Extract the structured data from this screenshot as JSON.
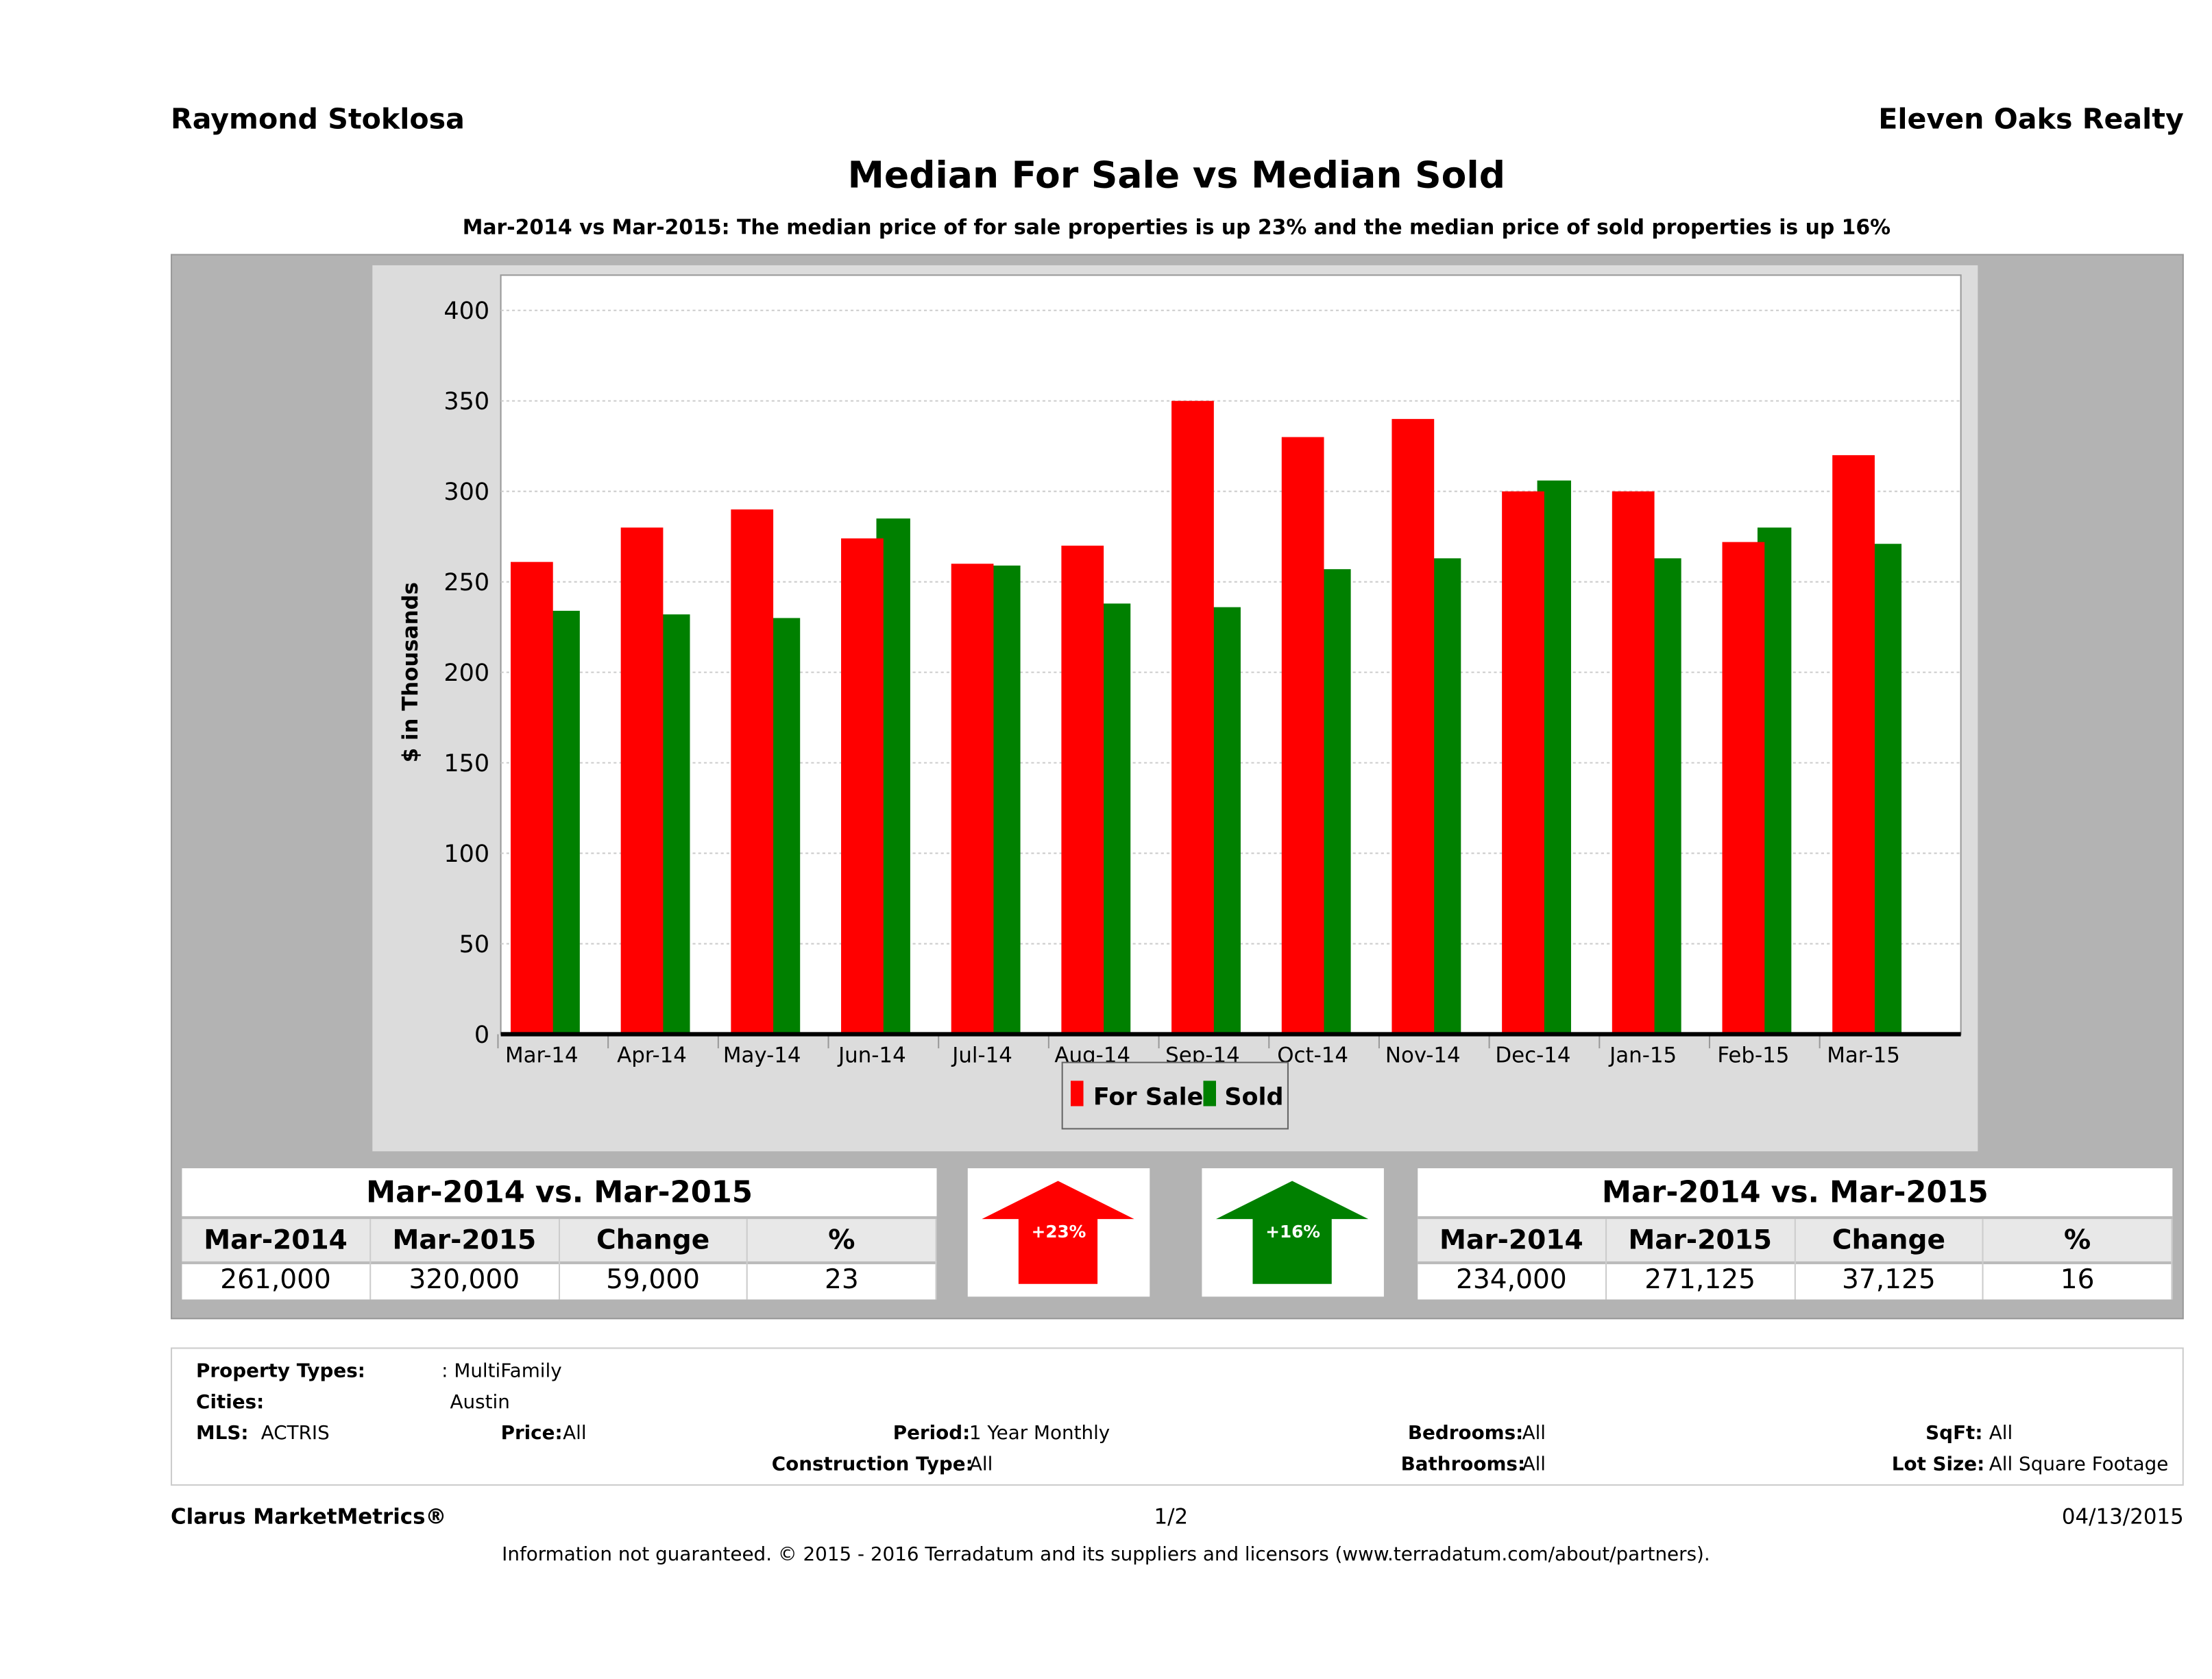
{
  "header": {
    "agent": "Raymond Stoklosa",
    "brokerage": "Eleven Oaks Realty"
  },
  "title": "Median For Sale vs Median Sold",
  "subtitle": "Mar-2014 vs Mar-2015: The median price of for sale properties is up 23% and the median price of sold properties is up 16%",
  "chart_data": {
    "type": "bar",
    "categories": [
      "Mar-14",
      "Apr-14",
      "May-14",
      "Jun-14",
      "Jul-14",
      "Aug-14",
      "Sep-14",
      "Oct-14",
      "Nov-14",
      "Dec-14",
      "Jan-15",
      "Feb-15",
      "Mar-15"
    ],
    "series": [
      {
        "name": "For Sale",
        "color": "#ff0000",
        "values": [
          261,
          280,
          290,
          274,
          260,
          270,
          350,
          330,
          340,
          300,
          300,
          272,
          320
        ]
      },
      {
        "name": "Sold",
        "color": "#008000",
        "values": [
          234,
          232,
          230,
          285,
          259,
          238,
          236,
          257,
          263,
          306,
          263,
          280,
          271
        ]
      }
    ],
    "ylabel": "$ in Thousands",
    "xlabel": "",
    "ylim": [
      0,
      400
    ],
    "yticks": [
      0,
      50,
      100,
      150,
      200,
      250,
      300,
      350,
      400
    ],
    "grid": true,
    "legend": "bottom"
  },
  "for_sale_table": {
    "title": "Mar-2014 vs. Mar-2015",
    "headers": [
      "Mar-2014",
      "Mar-2015",
      "Change",
      "%"
    ],
    "values": [
      "261,000",
      "320,000",
      "59,000",
      "23"
    ]
  },
  "sold_table": {
    "title": "Mar-2014 vs. Mar-2015",
    "headers": [
      "Mar-2014",
      "Mar-2015",
      "Change",
      "%"
    ],
    "values": [
      "234,000",
      "271,125",
      "37,125",
      "16"
    ]
  },
  "arrows": {
    "for_sale": {
      "label": "+23%",
      "color": "#ff0000",
      "direction": "up"
    },
    "sold": {
      "label": "+16%",
      "color": "#008000",
      "direction": "up"
    }
  },
  "info": {
    "property_types_label": "Property Types:",
    "property_types": ": MultiFamily",
    "cities_label": "Cities:",
    "cities": "Austin",
    "mls_label": "MLS:",
    "mls": "ACTRIS",
    "price_label": "Price:",
    "price": "All",
    "period_label": "Period:",
    "period": "1 Year Monthly",
    "bedrooms_label": "Bedrooms:",
    "bedrooms": "All",
    "sqft_label": "SqFt:",
    "sqft": "All",
    "construction_label": "Construction Type:",
    "construction": "All",
    "bathrooms_label": "Bathrooms:",
    "bathrooms": "All",
    "lot_label": "Lot Size:",
    "lot": "All Square Footage"
  },
  "footer": {
    "brand": "Clarus MarketMetrics®",
    "page": "1/2",
    "date": "04/13/2015",
    "disclaimer": "Information not guaranteed. © 2015 - 2016 Terradatum and its suppliers and licensors (www.terradatum.com/about/partners)."
  }
}
